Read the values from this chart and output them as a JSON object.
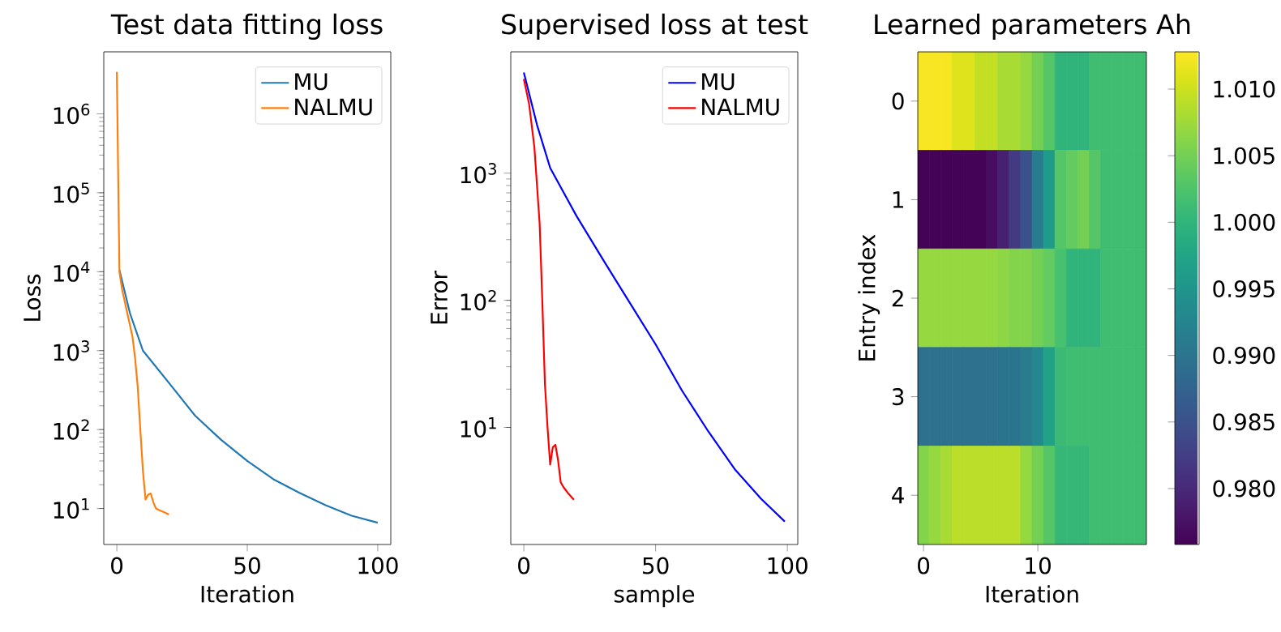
{
  "chart_data": [
    {
      "type": "line",
      "title": "Test data fitting loss",
      "xlabel": "Iteration",
      "ylabel": "Loss",
      "log": "y",
      "legend": "top right",
      "xlim": [
        -5,
        105
      ],
      "xticks": [
        0,
        50,
        100
      ],
      "ylim": [
        3.5,
        6100000
      ],
      "yticks": [
        {
          "value": 10,
          "label": "10$^{1}$"
        },
        {
          "value": 100,
          "label": "10$^{2}$"
        },
        {
          "value": 1000,
          "label": "10$^{3}$"
        },
        {
          "value": 10000,
          "label": "10$^{4}$"
        },
        {
          "value": 100000,
          "label": "10$^{5}$"
        },
        {
          "value": 1000000,
          "label": "10$^{6}$"
        }
      ],
      "series": [
        {
          "name": "MU",
          "color": "#1f77b4",
          "x": [
            1,
            5,
            10,
            20,
            30,
            40,
            50,
            60,
            70,
            80,
            90,
            100
          ],
          "values": [
            10500,
            3000,
            1000,
            390,
            150,
            74,
            40,
            23.5,
            15.8,
            11,
            8.1,
            6.6
          ]
        },
        {
          "name": "NALMU",
          "color": "#ff7f0e",
          "x": [
            0,
            1,
            2,
            4,
            6,
            7,
            8,
            9,
            10,
            11,
            12,
            13,
            14,
            15,
            16,
            18,
            20
          ],
          "values": [
            3400000,
            10000,
            6000,
            3000,
            1500,
            800,
            350,
            100,
            30,
            13,
            15,
            15.5,
            12,
            10,
            9.6,
            9,
            8.4
          ]
        }
      ]
    },
    {
      "type": "line",
      "title": "Supervised loss at test",
      "xlabel": "sample",
      "ylabel": "Error",
      "log": "y",
      "legend": "top right",
      "xlim": [
        -4.95,
        103.95
      ],
      "xticks": [
        0,
        50,
        100
      ],
      "ylim": [
        1.2,
        9000
      ],
      "yticks": [
        {
          "value": 10,
          "label": "10$^{1}$"
        },
        {
          "value": 100,
          "label": "10$^{2}$"
        },
        {
          "value": 1000,
          "label": "10$^{3}$"
        }
      ],
      "series": [
        {
          "name": "MU",
          "color": "#0000ff",
          "x": [
            0,
            5,
            10,
            20,
            30,
            40,
            50,
            60,
            70,
            80,
            90,
            99
          ],
          "values": [
            6200,
            2400,
            1100,
            460,
            210,
            97,
            45,
            19.5,
            9.3,
            4.7,
            2.75,
            1.82
          ]
        },
        {
          "name": "NALMU",
          "color": "#ff0000",
          "x": [
            0,
            2,
            4,
            6,
            7,
            8,
            9,
            10,
            11,
            12,
            13,
            14,
            15,
            17,
            19
          ],
          "values": [
            5500,
            3500,
            1600,
            400,
            100,
            22,
            10,
            5.1,
            7.0,
            7.3,
            5.5,
            3.7,
            3.4,
            3.0,
            2.7
          ]
        }
      ]
    },
    {
      "type": "heatmap",
      "title": "Learned parameters Ah",
      "xlabel": "Iteration",
      "ylabel": "Entry index",
      "categories": [
        "0",
        null,
        null,
        null,
        null,
        null,
        null,
        null,
        null,
        null,
        "10",
        null,
        null,
        null,
        null,
        null,
        null,
        null,
        null,
        null
      ],
      "y_categories": [
        "0",
        "1",
        "2",
        "3",
        "4"
      ],
      "cells": [
        [
          1.0125,
          1.0125,
          1.0125,
          1.011,
          1.011,
          1.0095,
          1.0095,
          1.008,
          1.008,
          1.007,
          1.005,
          1.003,
          1.0,
          1.0,
          1.0,
          1.0015,
          1.0015,
          1.0015,
          1.0015,
          1.0015
        ],
        [
          0.976,
          0.976,
          0.976,
          0.976,
          0.976,
          0.976,
          0.977,
          0.979,
          0.982,
          0.985,
          0.991,
          0.996,
          1.003,
          1.004,
          1.005,
          1.003,
          1.0015,
          1.0015,
          1.0015,
          1.0015
        ],
        [
          1.007,
          1.007,
          1.007,
          1.007,
          1.007,
          1.007,
          1.007,
          1.0065,
          1.006,
          1.006,
          1.005,
          1.004,
          1.002,
          1.0,
          1.0,
          1.0,
          1.0015,
          1.0015,
          1.0015,
          1.0015
        ],
        [
          0.9895,
          0.9895,
          0.9895,
          0.9895,
          0.9895,
          0.9895,
          0.9895,
          0.99,
          0.99,
          0.991,
          0.993,
          0.997,
          1.001,
          1.0015,
          1.0015,
          1.0015,
          1.0015,
          1.0015,
          1.0015,
          1.0015
        ],
        [
          1.006,
          1.007,
          1.008,
          1.009,
          1.009,
          1.009,
          1.009,
          1.009,
          1.009,
          1.007,
          1.005,
          1.003,
          1.0005,
          1.0005,
          1.0005,
          1.0015,
          1.0015,
          1.0015,
          1.0015,
          1.0015
        ]
      ],
      "clim": [
        0.9758,
        1.0128
      ],
      "cticks": [
        {
          "value": 0.98,
          "label": "0.980"
        },
        {
          "value": 0.985,
          "label": "0.985"
        },
        {
          "value": 0.99,
          "label": "0.990"
        },
        {
          "value": 0.995,
          "label": "0.995"
        },
        {
          "value": 1.0,
          "label": "1.000"
        },
        {
          "value": 1.005,
          "label": "1.005"
        },
        {
          "value": 1.01,
          "label": "1.010"
        }
      ]
    }
  ]
}
